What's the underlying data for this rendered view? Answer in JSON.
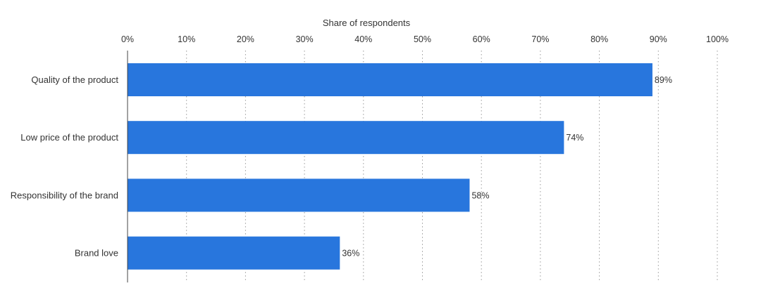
{
  "chart_data": {
    "type": "bar",
    "orientation": "horizontal",
    "xlabel": "Share of respondents",
    "ylabel": "",
    "xlim": [
      0,
      100
    ],
    "ticks": [
      0,
      10,
      20,
      30,
      40,
      50,
      60,
      70,
      80,
      90,
      100
    ],
    "tick_labels": [
      "0%",
      "10%",
      "20%",
      "30%",
      "40%",
      "50%",
      "60%",
      "70%",
      "80%",
      "90%",
      "100%"
    ],
    "categories": [
      "Quality of the product",
      "Low price of the product",
      "Responsibility of the brand",
      "Brand love"
    ],
    "values": [
      89,
      74,
      58,
      36
    ],
    "value_labels": [
      "89%",
      "74%",
      "58%",
      "36%"
    ],
    "grid": true,
    "axis_position": "top",
    "bar_color": "#2876dd"
  }
}
